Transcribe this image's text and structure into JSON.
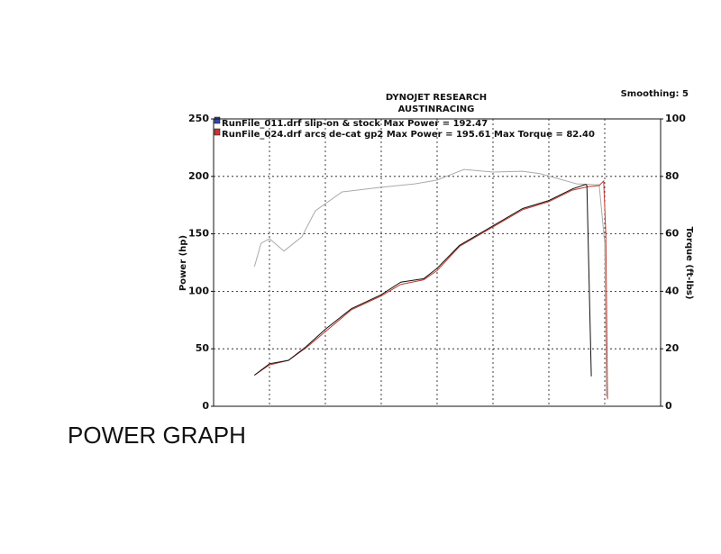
{
  "chart_data": {
    "type": "line",
    "title": "DYNOJET RESEARCH",
    "subtitle": "AUSTINRACING",
    "smoothing": "Smoothing: 5",
    "ylabel": "Power (hp)",
    "y2label": "Torque (ft-lbs)",
    "annotation": "Max Torque = 82.40",
    "caption": "POWER GRAPH",
    "xlim": [
      0,
      8
    ],
    "xticks": [
      1,
      2,
      3,
      4,
      5,
      6,
      7
    ],
    "ylim": [
      0,
      250
    ],
    "yticks": [
      0,
      50,
      100,
      150,
      200,
      250
    ],
    "y2lim": [
      0,
      100
    ],
    "y2ticks": [
      0,
      20,
      40,
      60,
      80,
      100
    ],
    "grid": true,
    "series": [
      {
        "name": "RunFile_011.drf slip-on & stock Max Power = 192.47",
        "color": "#111111",
        "x": [
          0.73,
          1,
          1.34,
          1.66,
          2,
          2.47,
          3,
          3.35,
          3.76,
          4,
          4.4,
          5,
          5.53,
          6,
          6.42,
          6.66,
          6.68,
          6.76
        ],
        "values": [
          27,
          37,
          40,
          52,
          67,
          85,
          97,
          108,
          111,
          120,
          140,
          157,
          172,
          179,
          189,
          193,
          192,
          26
        ]
      },
      {
        "name": "RunFile_024.drf arcs de-cat gp2 Max Power = 195.61",
        "color": "#c0392b",
        "x": [
          0.73,
          1,
          1.34,
          1.66,
          2,
          2.47,
          3,
          3.35,
          3.76,
          4,
          4.4,
          5,
          5.53,
          6,
          6.42,
          6.7,
          6.9,
          6.98,
          7.02,
          7.05
        ],
        "values": [
          27,
          36,
          40,
          51,
          65,
          84,
          96,
          106,
          110,
          118,
          139,
          156,
          171,
          178,
          188,
          191,
          192,
          196,
          150,
          6
        ]
      },
      {
        "color": "#aaaaaa",
        "axis": "y2",
        "x": [
          0.73,
          0.85,
          1,
          1.26,
          1.58,
          1.82,
          2.3,
          3,
          3.6,
          4,
          4.48,
          5,
          5.53,
          5.85,
          6.5,
          6.9,
          7,
          7.03
        ],
        "values": [
          48.6,
          56.7,
          58.3,
          54,
          59,
          68,
          74.6,
          76.2,
          77.4,
          78.7,
          82.4,
          81.5,
          81.8,
          80.9,
          77.4,
          77.1,
          56.7,
          3.4
        ]
      }
    ]
  }
}
